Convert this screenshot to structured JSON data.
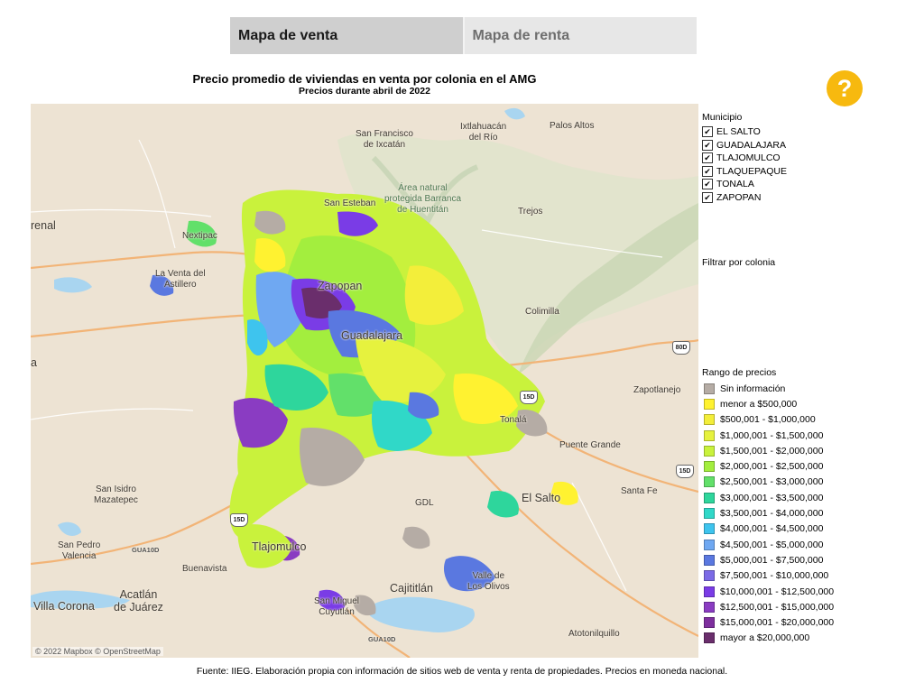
{
  "tabs": [
    {
      "label": "Mapa de venta",
      "active": true
    },
    {
      "label": "Mapa de renta",
      "active": false
    }
  ],
  "title": "Precio promedio de viviendas en venta por colonia en el AMG",
  "subtitle": "Precios durante abril de 2022",
  "help_label": "?",
  "map": {
    "place_labels": [
      {
        "id": "san-francisco",
        "text": "San Francisco\nde Ixcatán",
        "style": ""
      },
      {
        "id": "ixtlahuacan",
        "text": "Ixtlahuacán\ndel Río",
        "style": ""
      },
      {
        "id": "palos-altos",
        "text": "Palos Altos",
        "style": ""
      },
      {
        "id": "barranca",
        "text": "Área natural\nprotegida Barranca\nde Huentitán",
        "style": "green"
      },
      {
        "id": "san-esteban",
        "text": "San Esteban",
        "style": ""
      },
      {
        "id": "trejos",
        "text": "Trejos",
        "style": ""
      },
      {
        "id": "arenal",
        "text": "renal",
        "style": ""
      },
      {
        "id": "nextipac",
        "text": "Nextipac",
        "style": ""
      },
      {
        "id": "venta-astillero",
        "text": "La Venta del\nAstillero",
        "style": ""
      },
      {
        "id": "zapopan",
        "text": "Zapopan",
        "style": "big"
      },
      {
        "id": "colimilla",
        "text": "Colimilla",
        "style": ""
      },
      {
        "id": "guadalajara",
        "text": "Guadalajara",
        "style": "big"
      },
      {
        "id": "a-edge",
        "text": "a",
        "style": "big"
      },
      {
        "id": "zapotlanejo",
        "text": "Zapotlanejo",
        "style": ""
      },
      {
        "id": "tonala",
        "text": "Tonalá",
        "style": ""
      },
      {
        "id": "puente-grande",
        "text": "Puente Grande",
        "style": ""
      },
      {
        "id": "san-isidro",
        "text": "San Isidro\nMazatepec",
        "style": ""
      },
      {
        "id": "gdl-airport",
        "text": "GDL",
        "style": ""
      },
      {
        "id": "el-salto",
        "text": "El Salto",
        "style": "big"
      },
      {
        "id": "santa-fe",
        "text": "Santa Fe",
        "style": ""
      },
      {
        "id": "san-pedro",
        "text": "San Pedro\nValencia",
        "style": ""
      },
      {
        "id": "tlajomulco",
        "text": "Tlajomulco",
        "style": "big"
      },
      {
        "id": "buenavista",
        "text": "Buenavista",
        "style": ""
      },
      {
        "id": "valle-olivos",
        "text": "Valle de\nLos Olivos",
        "style": ""
      },
      {
        "id": "cajititlan",
        "text": "Cajititlán",
        "style": "big"
      },
      {
        "id": "villa-corona",
        "text": "Villa Corona",
        "style": "big"
      },
      {
        "id": "acatlan",
        "text": "Acatlán\nde Juárez",
        "style": "big"
      },
      {
        "id": "san-miguel",
        "text": "San Miguel\nCuyutlán",
        "style": ""
      },
      {
        "id": "atotonilquillo",
        "text": "Atotonilquillo",
        "style": ""
      },
      {
        "id": "gua10d-a",
        "text": "GUA10D",
        "style": "road"
      },
      {
        "id": "gua10d-b",
        "text": "GUA10D",
        "style": "road"
      }
    ],
    "highway_shields": [
      "80D",
      "15D",
      "15D",
      "15D"
    ],
    "attribution": "© 2022 Mapbox © OpenStreetMap"
  },
  "municipio": {
    "title": "Municipio",
    "items": [
      {
        "label": "EL SALTO",
        "checked": true
      },
      {
        "label": "GUADALAJARA",
        "checked": true
      },
      {
        "label": "TLAJOMULCO",
        "checked": true
      },
      {
        "label": "TLAQUEPAQUE",
        "checked": true
      },
      {
        "label": "TONALA",
        "checked": true
      },
      {
        "label": "ZAPOPAN",
        "checked": true
      }
    ]
  },
  "filter": {
    "label": "Filtrar por colonia"
  },
  "legend": {
    "title": "Rango de precios",
    "items": [
      {
        "label": "Sin información",
        "color": "#b5aca5"
      },
      {
        "label": "menor a $500,000",
        "color": "#fff230"
      },
      {
        "label": "$500,001 - $1,000,000",
        "color": "#f3ee3a"
      },
      {
        "label": "$1,000,001 - $1,500,000",
        "color": "#e6f23e"
      },
      {
        "label": "$1,500,001 - $2,000,000",
        "color": "#c9f23c"
      },
      {
        "label": "$2,000,001 - $2,500,000",
        "color": "#a3ee3e"
      },
      {
        "label": "$2,500,001 - $3,000,000",
        "color": "#62e06a"
      },
      {
        "label": "$3,000,001 - $3,500,000",
        "color": "#2ed69c"
      },
      {
        "label": "$3,500,001 - $4,000,000",
        "color": "#30d8c8"
      },
      {
        "label": "$4,000,001 - $4,500,000",
        "color": "#3ec4ee"
      },
      {
        "label": "$4,500,001 - $5,000,000",
        "color": "#6fa8f2"
      },
      {
        "label": "$5,000,001 - $7,500,000",
        "color": "#5a78e0"
      },
      {
        "label": "$7,500,001 - $10,000,000",
        "color": "#7b6ae6"
      },
      {
        "label": "$10,000,001 - $12,500,000",
        "color": "#7a3ce6"
      },
      {
        "label": "$12,500,001 - $15,000,000",
        "color": "#8a3cc2"
      },
      {
        "label": "$15,000,001 - $20,000,000",
        "color": "#7e2f9e"
      },
      {
        "label": "mayor a $20,000,000",
        "color": "#6a2e6c"
      }
    ]
  },
  "source": "Fuente: IIEG. Elaboración propia con información de sitios web de venta y renta de propiedades. Precios en moneda nacional."
}
